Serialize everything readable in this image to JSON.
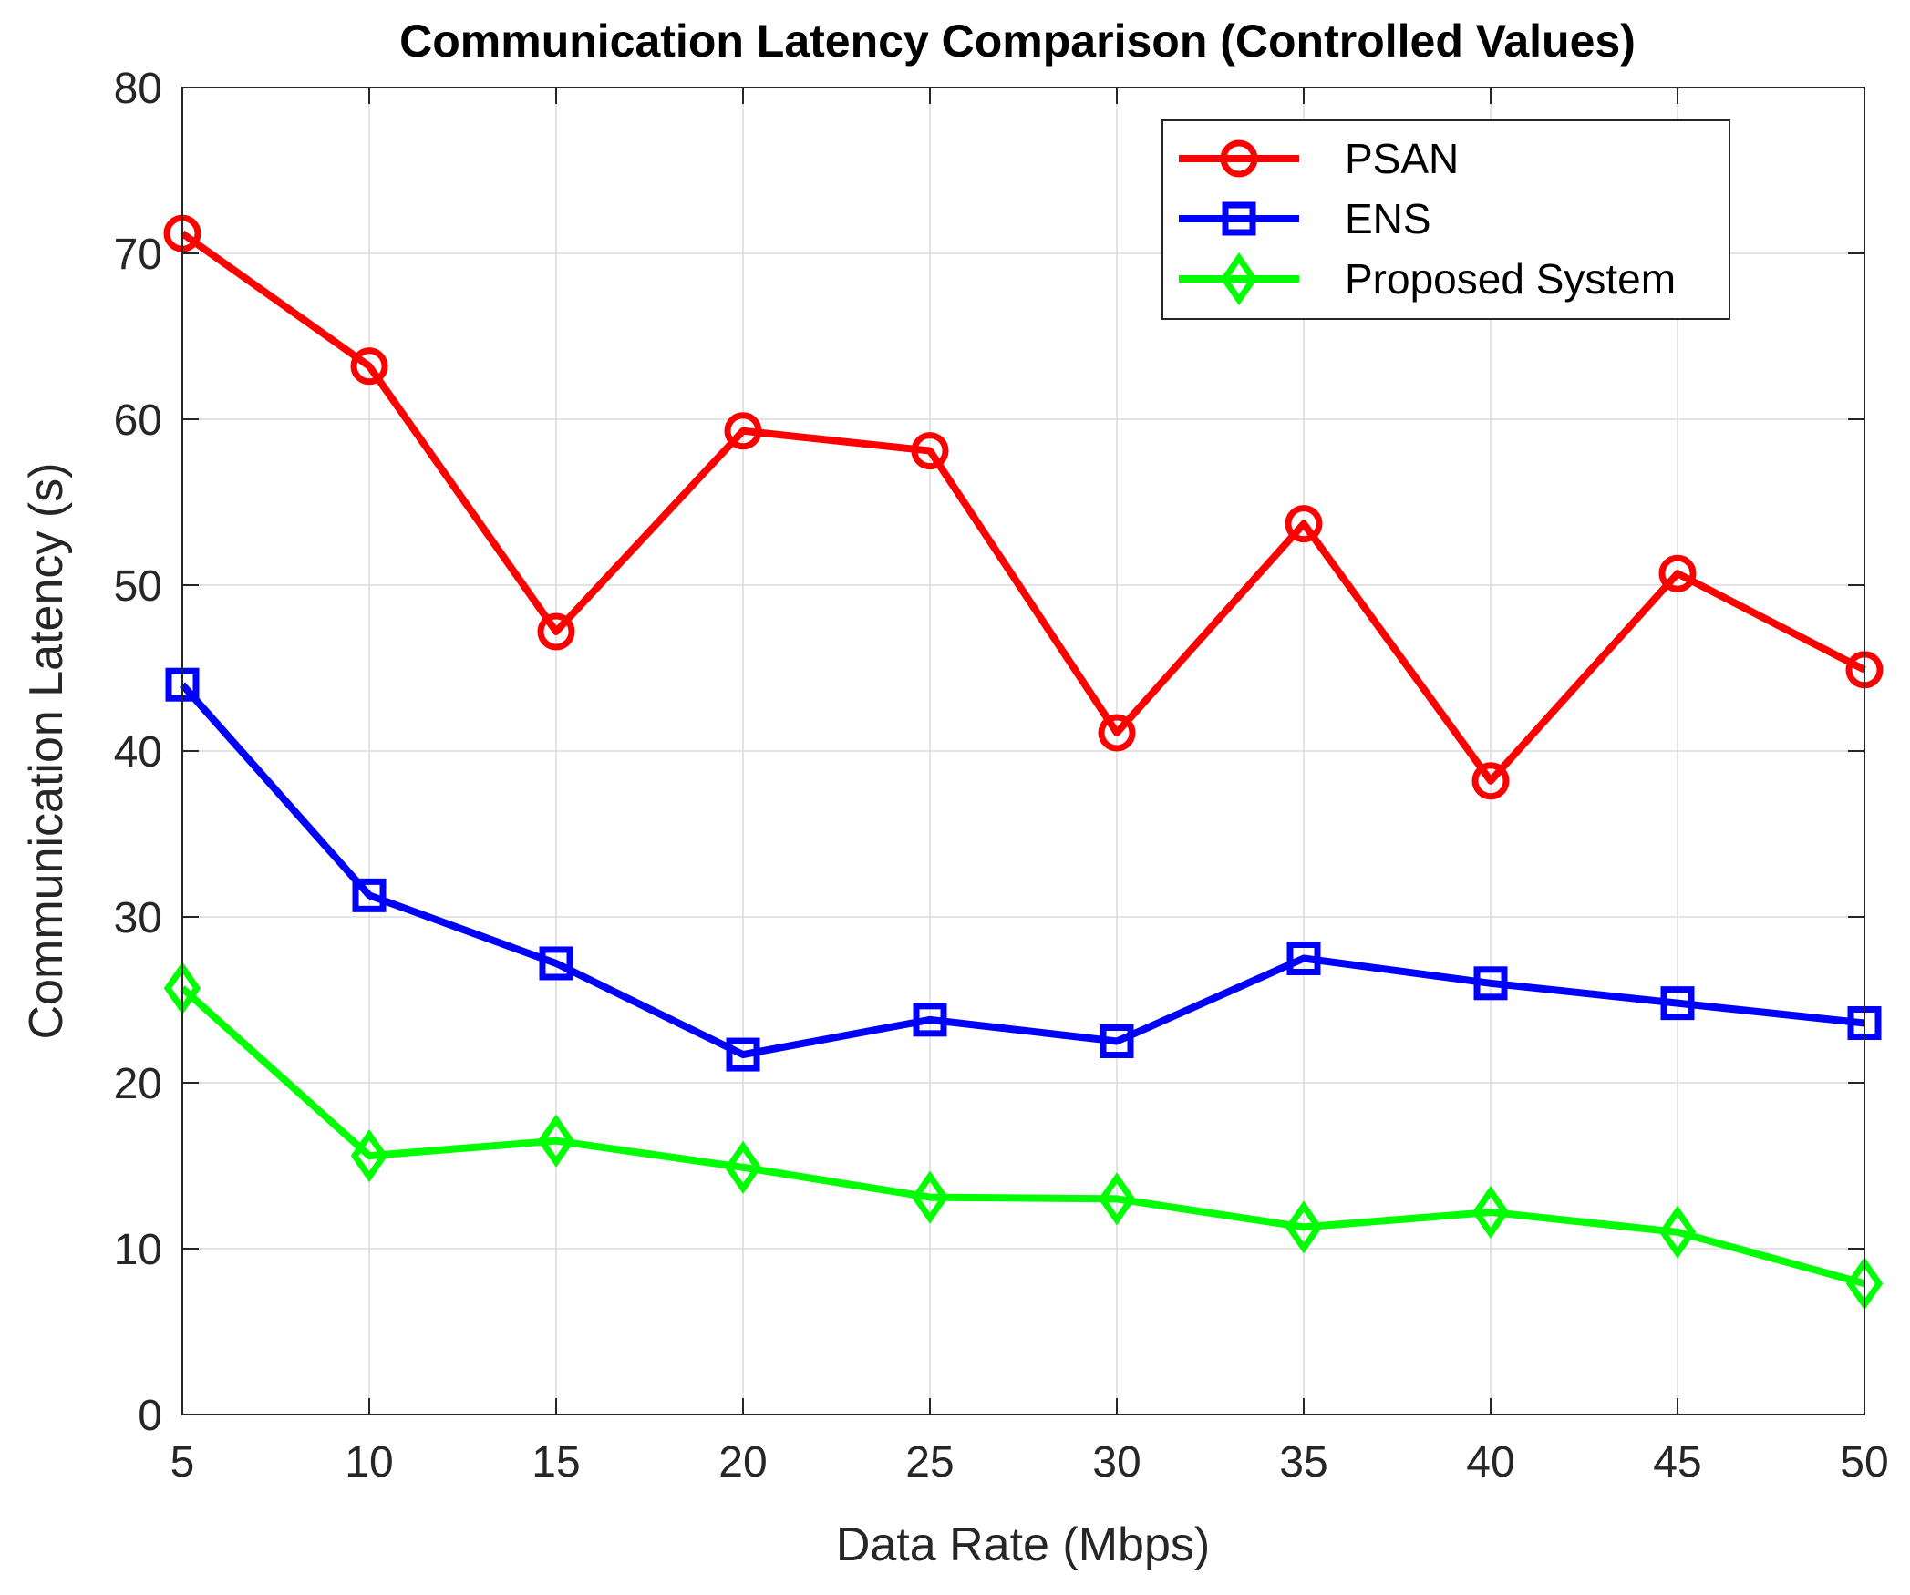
{
  "chart_data": {
    "type": "line",
    "title": "Communication Latency Comparison (Controlled Values)",
    "xlabel": "Data Rate (Mbps)",
    "ylabel": "Communication Latency (s)",
    "x": [
      5,
      10,
      15,
      20,
      25,
      30,
      35,
      40,
      45,
      50
    ],
    "xlim": [
      5,
      50
    ],
    "ylim": [
      0,
      80
    ],
    "xticks": [
      5,
      10,
      15,
      20,
      25,
      30,
      35,
      40,
      45,
      50
    ],
    "yticks": [
      0,
      10,
      20,
      30,
      40,
      50,
      60,
      70,
      80
    ],
    "grid": true,
    "legend_position": "top-right",
    "series": [
      {
        "name": "PSAN",
        "color": "#ff0000",
        "marker": "circle",
        "values": [
          71.2,
          63.2,
          47.2,
          59.3,
          58.1,
          41.1,
          53.7,
          38.2,
          50.7,
          44.9
        ]
      },
      {
        "name": "ENS",
        "color": "#0000ff",
        "marker": "square",
        "values": [
          44.0,
          31.3,
          27.2,
          21.7,
          23.8,
          22.5,
          27.5,
          26.0,
          24.8,
          23.6
        ]
      },
      {
        "name": "Proposed System",
        "color": "#00ff00",
        "marker": "diamond",
        "values": [
          25.7,
          15.6,
          16.5,
          14.9,
          13.1,
          13.0,
          11.3,
          12.2,
          11.0,
          7.9
        ]
      }
    ]
  }
}
